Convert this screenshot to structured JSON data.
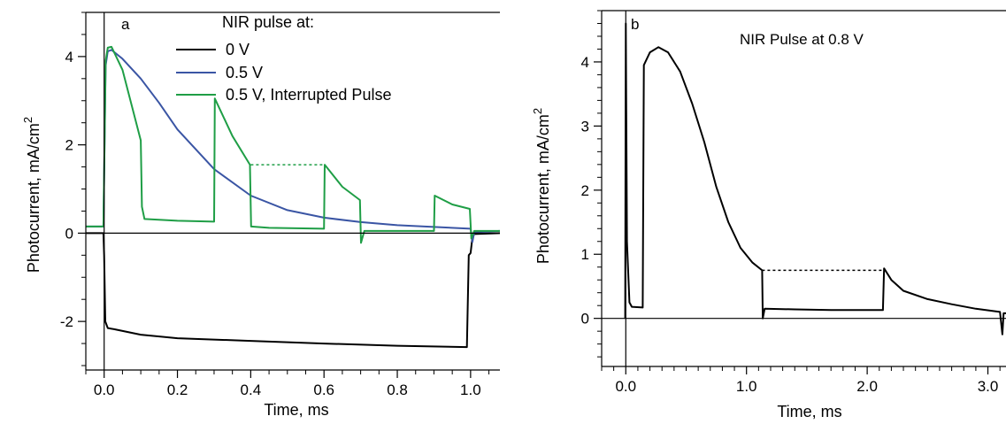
{
  "chart_data": [
    {
      "type": "line",
      "panel_label": "a",
      "xlabel": "Time,  ms",
      "ylabel": "Photocurrent,  mA/cm",
      "ylabel_superscript": "2",
      "xlim": [
        -0.05,
        1.08
      ],
      "ylim": [
        -3.1,
        5.0
      ],
      "x_ticks": [
        0.0,
        0.2,
        0.4,
        0.6,
        0.8,
        1.0
      ],
      "x_tick_labels": [
        "0.0",
        "0.2",
        "0.4",
        "0.6",
        "0.8",
        "1.0"
      ],
      "y_ticks": [
        -2,
        0,
        2,
        4
      ],
      "y_tick_labels": [
        "-2",
        "0",
        "2",
        "4"
      ],
      "grid": false,
      "zero_line": true,
      "legend_title": "NIR pulse at:",
      "legend_position": "top-right",
      "series": [
        {
          "name": "0 V",
          "color": "#000000",
          "points": [
            [
              -0.05,
              0.0
            ],
            [
              -0.002,
              0.0
            ],
            [
              0.0,
              -0.5
            ],
            [
              0.003,
              -2.0
            ],
            [
              0.01,
              -2.15
            ],
            [
              0.03,
              -2.18
            ],
            [
              0.1,
              -2.3
            ],
            [
              0.2,
              -2.38
            ],
            [
              0.4,
              -2.44
            ],
            [
              0.6,
              -2.5
            ],
            [
              0.8,
              -2.55
            ],
            [
              0.99,
              -2.58
            ],
            [
              0.995,
              -0.5
            ],
            [
              1.0,
              -0.45
            ],
            [
              1.005,
              -0.1
            ],
            [
              1.01,
              -0.02
            ],
            [
              1.08,
              0.0
            ]
          ]
        },
        {
          "name": "0.5 V",
          "color": "#3a55a4",
          "points": [
            [
              -0.05,
              0.15
            ],
            [
              -0.002,
              0.15
            ],
            [
              0.004,
              3.8
            ],
            [
              0.01,
              4.12
            ],
            [
              0.02,
              4.15
            ],
            [
              0.05,
              3.95
            ],
            [
              0.1,
              3.5
            ],
            [
              0.15,
              2.95
            ],
            [
              0.2,
              2.35
            ],
            [
              0.3,
              1.45
            ],
            [
              0.4,
              0.85
            ],
            [
              0.5,
              0.52
            ],
            [
              0.6,
              0.35
            ],
            [
              0.7,
              0.25
            ],
            [
              0.8,
              0.18
            ],
            [
              0.9,
              0.14
            ],
            [
              1.0,
              0.1
            ],
            [
              1.005,
              -0.2
            ],
            [
              1.01,
              0.02
            ],
            [
              1.08,
              0.05
            ]
          ]
        },
        {
          "name": "0.5 V, Interrupted Pulse",
          "color": "#1f9e46",
          "points": [
            [
              -0.05,
              0.15
            ],
            [
              -0.002,
              0.15
            ],
            [
              0.004,
              3.9
            ],
            [
              0.01,
              4.2
            ],
            [
              0.02,
              4.22
            ],
            [
              0.05,
              3.7
            ],
            [
              0.1,
              2.1
            ],
            [
              0.103,
              0.6
            ],
            [
              0.11,
              0.32
            ],
            [
              0.2,
              0.28
            ],
            [
              0.3,
              0.26
            ],
            [
              0.302,
              3.05
            ],
            [
              0.35,
              2.2
            ],
            [
              0.398,
              1.55
            ],
            [
              0.401,
              0.15
            ],
            [
              0.45,
              0.12
            ],
            [
              0.6,
              0.1
            ],
            [
              0.602,
              1.55
            ],
            [
              0.65,
              1.05
            ],
            [
              0.698,
              0.75
            ],
            [
              0.701,
              -0.22
            ],
            [
              0.71,
              0.05
            ],
            [
              0.8,
              0.05
            ],
            [
              0.9,
              0.05
            ],
            [
              0.902,
              0.85
            ],
            [
              0.95,
              0.65
            ],
            [
              0.998,
              0.55
            ],
            [
              1.002,
              -0.12
            ],
            [
              1.01,
              0.05
            ],
            [
              1.08,
              0.05
            ]
          ]
        },
        {
          "name": "",
          "color": "#1f9e46",
          "dashed": true,
          "points": [
            [
              0.4,
              1.55
            ],
            [
              0.6,
              1.55
            ]
          ]
        }
      ]
    },
    {
      "type": "line",
      "panel_label": "b",
      "xlabel": "Time, ms",
      "ylabel": "Photocurrent,  mA/cm",
      "ylabel_superscript": "2",
      "xlim": [
        -0.2,
        3.15
      ],
      "ylim": [
        -0.75,
        4.8
      ],
      "x_ticks": [
        0.0,
        1.0,
        2.0,
        3.0
      ],
      "x_tick_labels": [
        "0.0",
        "1.0",
        "2.0",
        "3.0"
      ],
      "y_ticks": [
        0,
        1,
        2,
        3,
        4
      ],
      "y_tick_labels": [
        "0",
        "1",
        "2",
        "3",
        "4"
      ],
      "grid": false,
      "zero_line": true,
      "annotation": "NIR Pulse at 0.8 V",
      "series": [
        {
          "name": "",
          "color": "#000000",
          "points": [
            [
              -0.005,
              0.0
            ],
            [
              0.0,
              4.6
            ],
            [
              0.01,
              1.2
            ],
            [
              0.03,
              0.25
            ],
            [
              0.05,
              0.18
            ],
            [
              0.14,
              0.17
            ],
            [
              0.15,
              3.95
            ],
            [
              0.2,
              4.15
            ],
            [
              0.27,
              4.23
            ],
            [
              0.35,
              4.15
            ],
            [
              0.45,
              3.85
            ],
            [
              0.55,
              3.35
            ],
            [
              0.65,
              2.75
            ],
            [
              0.75,
              2.05
            ],
            [
              0.85,
              1.5
            ],
            [
              0.95,
              1.1
            ],
            [
              1.05,
              0.87
            ],
            [
              1.13,
              0.75
            ],
            [
              1.135,
              0.0
            ],
            [
              1.15,
              0.15
            ],
            [
              1.4,
              0.14
            ],
            [
              1.7,
              0.13
            ],
            [
              2.0,
              0.13
            ],
            [
              2.13,
              0.13
            ],
            [
              2.14,
              0.78
            ],
            [
              2.2,
              0.6
            ],
            [
              2.3,
              0.43
            ],
            [
              2.5,
              0.3
            ],
            [
              2.7,
              0.22
            ],
            [
              2.9,
              0.15
            ],
            [
              3.1,
              0.1
            ],
            [
              3.12,
              -0.25
            ],
            [
              3.13,
              0.08
            ],
            [
              3.15,
              0.08
            ]
          ]
        },
        {
          "name": "",
          "color": "#000000",
          "dashed": true,
          "points": [
            [
              1.13,
              0.75
            ],
            [
              2.14,
              0.75
            ]
          ]
        }
      ]
    }
  ]
}
